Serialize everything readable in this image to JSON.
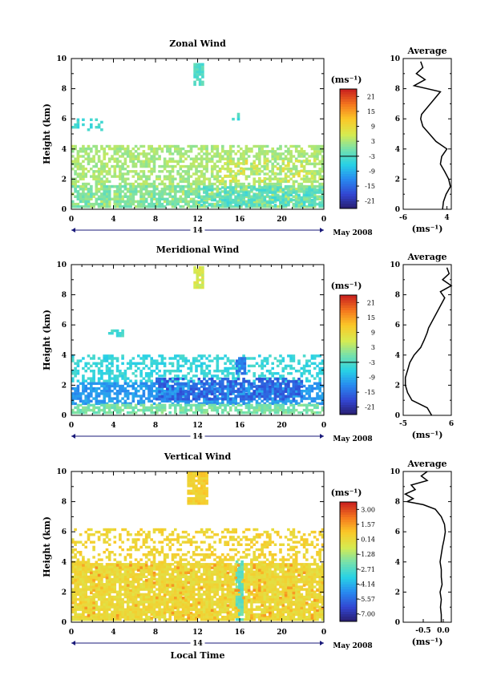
{
  "chart_data": [
    {
      "type": "heatmap",
      "title": "Zonal Wind",
      "ylabel": "Height (km)",
      "unit": "(ms⁻¹)",
      "ylim": [
        0,
        10
      ],
      "xlim": [
        0,
        24
      ],
      "x_ticks": [
        "0",
        "4",
        "8",
        "12",
        "16",
        "20",
        "0"
      ],
      "date_label": "14",
      "month_label": "May 2008",
      "colorbar": {
        "ticks": [
          "21",
          "15",
          "9",
          "3",
          "-3",
          "-9",
          "-15",
          "-21"
        ],
        "min": -24,
        "max": 24
      },
      "clusters": [
        {
          "t": [
            0,
            24
          ],
          "h": [
            0.1,
            4.2
          ],
          "value": 3,
          "density": 0.6
        },
        {
          "t": [
            0,
            24
          ],
          "h": [
            0.1,
            1.6
          ],
          "value": 0,
          "density": 0.55
        },
        {
          "t": [
            12,
            24
          ],
          "h": [
            0.2,
            1.4
          ],
          "value": -3,
          "density": 0.45
        },
        {
          "t": [
            0,
            3
          ],
          "h": [
            5.2,
            6.0
          ],
          "value": -4,
          "density": 0.4
        },
        {
          "t": [
            11.6,
            12.4
          ],
          "h": [
            8.2,
            9.6
          ],
          "value": -3,
          "density": 0.9
        },
        {
          "t": [
            15.0,
            16.0
          ],
          "h": [
            5.9,
            6.4
          ],
          "value": -4,
          "density": 0.6
        },
        {
          "t": [
            14,
            24
          ],
          "h": [
            1.8,
            3.2
          ],
          "value": 7,
          "density": 0.15
        }
      ],
      "average": {
        "xlim": [
          -6,
          5
        ],
        "x_ticks": [
          "-6",
          "4"
        ],
        "xlabel": "(ms⁻¹)",
        "title": "Average",
        "h": [
          0.0,
          0.5,
          1.0,
          1.5,
          2.0,
          2.5,
          3.0,
          3.5,
          4.0,
          4.5,
          5.0,
          5.5,
          6.0,
          6.3,
          7.8,
          8.2,
          8.6,
          9.0,
          9.4,
          9.8
        ],
        "v": [
          3.0,
          3.2,
          3.8,
          4.8,
          4.4,
          3.5,
          2.5,
          2.8,
          4.0,
          1.5,
          0.0,
          -1.5,
          -2.0,
          -1.8,
          2.5,
          -3.5,
          -1.0,
          -3.0,
          -1.5,
          -2.0
        ]
      }
    },
    {
      "type": "heatmap",
      "title": "Meridional Wind",
      "ylabel": "Height (km)",
      "unit": "(ms⁻¹)",
      "ylim": [
        0,
        10
      ],
      "xlim": [
        0,
        24
      ],
      "x_ticks": [
        "0",
        "4",
        "8",
        "12",
        "16",
        "20",
        "0"
      ],
      "date_label": "14",
      "month_label": "May 2008",
      "colorbar": {
        "ticks": [
          "21",
          "15",
          "9",
          "3",
          "-3",
          "-9",
          "-15",
          "-21"
        ],
        "min": -24,
        "max": 24
      },
      "clusters": [
        {
          "t": [
            0,
            24
          ],
          "h": [
            2.2,
            4.0
          ],
          "value": -5,
          "density": 0.45
        },
        {
          "t": [
            0,
            24
          ],
          "h": [
            0.7,
            2.2
          ],
          "value": -11,
          "density": 0.7
        },
        {
          "t": [
            8,
            22
          ],
          "h": [
            1.0,
            2.4
          ],
          "value": -16,
          "density": 0.5
        },
        {
          "t": [
            0,
            24
          ],
          "h": [
            0.1,
            0.7
          ],
          "value": 0,
          "density": 0.7
        },
        {
          "t": [
            11.6,
            12.4
          ],
          "h": [
            8.4,
            9.8
          ],
          "value": 6,
          "density": 0.8
        },
        {
          "t": [
            3.5,
            5
          ],
          "h": [
            5.2,
            5.7
          ],
          "value": -4,
          "density": 0.6
        },
        {
          "t": [
            15.6,
            16.4
          ],
          "h": [
            2.7,
            3.8
          ],
          "value": -14,
          "density": 0.8
        }
      ],
      "average": {
        "xlim": [
          -5,
          6
        ],
        "x_ticks": [
          "-5",
          "6"
        ],
        "xlabel": "(ms⁻¹)",
        "title": "Average",
        "h": [
          0.0,
          0.5,
          1.0,
          1.5,
          2.0,
          2.5,
          3.0,
          3.5,
          4.0,
          4.5,
          5.0,
          5.5,
          5.8,
          7.8,
          8.2,
          8.6,
          9.0,
          9.4,
          9.8
        ],
        "v": [
          1.5,
          0.5,
          -3.0,
          -4.0,
          -4.5,
          -4.5,
          -4.0,
          -3.5,
          -2.5,
          -1.0,
          -0.2,
          0.5,
          0.8,
          4.5,
          3.5,
          6.0,
          4.0,
          5.5,
          5.0
        ]
      }
    },
    {
      "type": "heatmap",
      "title": "Vertical Wind",
      "ylabel": "Height (km)",
      "xlabel": "Local Time",
      "unit": "(ms⁻¹)",
      "ylim": [
        0,
        10
      ],
      "xlim": [
        0,
        24
      ],
      "x_ticks": [
        "0",
        "4",
        "8",
        "12",
        "16",
        "20",
        "0"
      ],
      "date_label": "14",
      "month_label": "May 2008",
      "colorbar": {
        "ticks": [
          "3.00",
          "1.57",
          "0.14",
          "-1.28",
          "-2.71",
          "-4.14",
          "-5.57",
          "-7.00"
        ],
        "min": -7.7,
        "max": 3.7
      },
      "clusters": [
        {
          "t": [
            0,
            24
          ],
          "h": [
            0.1,
            3.9
          ],
          "value": 0.2,
          "density": 0.9
        },
        {
          "t": [
            0,
            24
          ],
          "h": [
            3.9,
            6.2
          ],
          "value": 0.4,
          "density": 0.35
        },
        {
          "t": [
            11.0,
            13.0
          ],
          "h": [
            7.8,
            9.9
          ],
          "value": 0.6,
          "density": 0.85
        },
        {
          "t": [
            15.6,
            16.2
          ],
          "h": [
            0.1,
            4.0
          ],
          "value": -2.4,
          "density": 0.8
        },
        {
          "t": [
            0,
            24
          ],
          "h": [
            0.2,
            3.8
          ],
          "value": 1.4,
          "density": 0.06
        }
      ],
      "average": {
        "xlim": [
          -1.0,
          0.2
        ],
        "x_ticks": [
          "-0.5",
          "0.0"
        ],
        "xlabel": "(ms⁻¹)",
        "title": "Average",
        "h": [
          0.0,
          0.5,
          1.0,
          1.5,
          2.0,
          2.5,
          3.0,
          3.5,
          4.0,
          4.5,
          5.0,
          5.5,
          6.0,
          6.5,
          7.0,
          7.5,
          7.8,
          8.0,
          8.2,
          8.5,
          8.8,
          9.1,
          9.4,
          9.7,
          10.0
        ],
        "v": [
          -0.05,
          -0.05,
          -0.07,
          -0.05,
          -0.08,
          -0.03,
          -0.05,
          -0.05,
          -0.08,
          -0.05,
          -0.02,
          0.02,
          0.05,
          0.03,
          -0.05,
          -0.2,
          -0.5,
          -0.9,
          -0.75,
          -0.95,
          -0.7,
          -0.8,
          -0.4,
          -0.55,
          -0.4
        ]
      }
    }
  ]
}
